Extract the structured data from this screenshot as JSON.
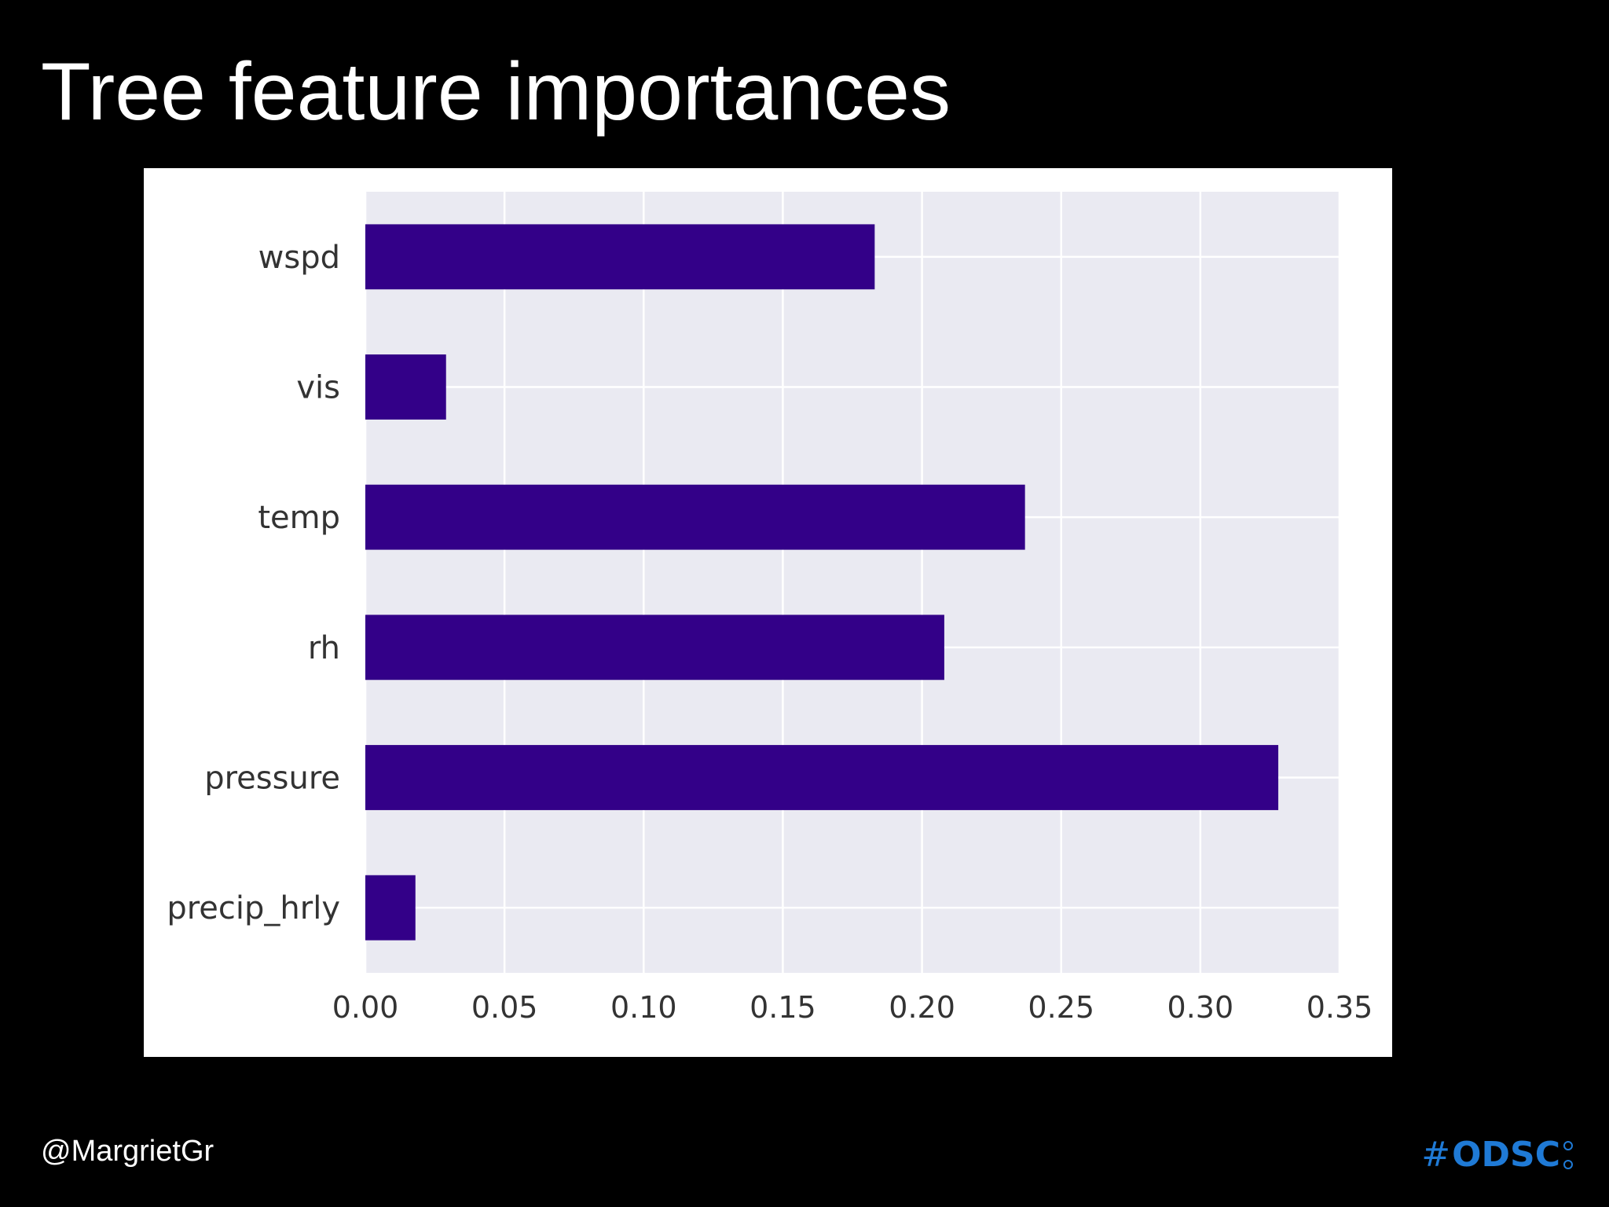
{
  "slide": {
    "title": "Tree feature importances",
    "footer_handle": "@MargrietGr",
    "footer_brand_hash": "#",
    "footer_brand_text": "ODSC"
  },
  "colors": {
    "background": "#000000",
    "bar": "#330088",
    "plot_background": "#eaeaf2",
    "grid": "#ffffff",
    "brand": "#1f7ad6"
  },
  "chart_data": {
    "type": "bar",
    "orientation": "horizontal",
    "categories": [
      "precip_hrly",
      "pressure",
      "rh",
      "temp",
      "vis",
      "wspd"
    ],
    "values": [
      0.018,
      0.328,
      0.208,
      0.237,
      0.029,
      0.183
    ],
    "xlim": [
      0.0,
      0.35
    ],
    "xticks": [
      "0.00",
      "0.05",
      "0.10",
      "0.15",
      "0.20",
      "0.25",
      "0.30",
      "0.35"
    ],
    "grid": true,
    "title": "",
    "xlabel": "",
    "ylabel": ""
  }
}
